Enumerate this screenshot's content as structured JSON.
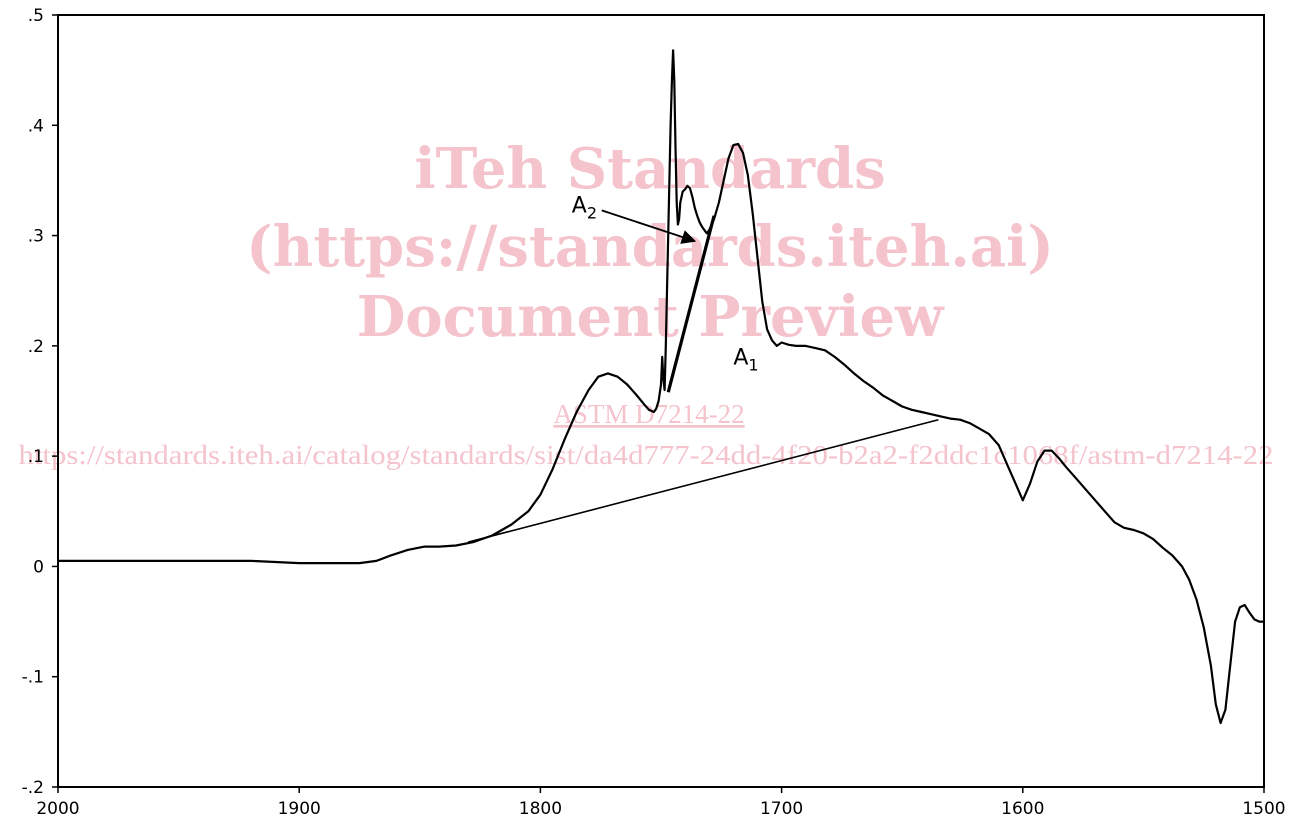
{
  "chart_data": {
    "type": "line",
    "title": "",
    "xlabel": "",
    "ylabel": "",
    "xlim": [
      2000,
      1500
    ],
    "ylim": [
      -0.2,
      0.5
    ],
    "x_reversed": true,
    "grid": false,
    "x_ticks": [
      2000,
      1900,
      1800,
      1700,
      1600,
      1500
    ],
    "x_tick_labels": [
      "2000",
      "1900",
      "1800",
      "1700",
      "1600",
      "1500"
    ],
    "y_ticks": [
      0.5,
      0.4,
      0.3,
      0.2,
      0.1,
      0,
      -0.1,
      -0.2
    ],
    "y_tick_labels": [
      ".5",
      ".4",
      ".3",
      ".2",
      ".1",
      "0",
      "-.1",
      "-.2"
    ],
    "series": [
      {
        "x": [
          2000,
          1980,
          1960,
          1940,
          1920,
          1900,
          1885,
          1875,
          1868,
          1862,
          1855,
          1848,
          1842,
          1835,
          1828,
          1820,
          1812,
          1805,
          1800,
          1795,
          1790,
          1785,
          1780,
          1776,
          1772,
          1768,
          1764,
          1760,
          1757,
          1755,
          1753,
          1752,
          1751,
          1750,
          1749.5,
          1749,
          1748.5,
          1748,
          1747,
          1746,
          1745.5,
          1745,
          1744.5,
          1744,
          1743.5,
          1743,
          1742.5,
          1742,
          1741,
          1740,
          1739,
          1738,
          1737,
          1736,
          1735,
          1734,
          1733,
          1732,
          1731,
          1730,
          1728,
          1726,
          1724,
          1722,
          1720,
          1718,
          1716,
          1714,
          1712,
          1710,
          1708,
          1706,
          1704,
          1702,
          1700,
          1697,
          1694,
          1690,
          1686,
          1682,
          1678,
          1674,
          1670,
          1666,
          1662,
          1658,
          1654,
          1650,
          1646,
          1642,
          1638,
          1634,
          1630,
          1626,
          1622,
          1618,
          1614,
          1610,
          1606,
          1603,
          1600,
          1597,
          1594,
          1591,
          1588,
          1585,
          1582,
          1578,
          1574,
          1570,
          1566,
          1562,
          1558,
          1554,
          1550,
          1546,
          1542,
          1538,
          1534,
          1531,
          1528,
          1525,
          1522,
          1520,
          1518,
          1516,
          1514,
          1512,
          1510,
          1508,
          1506,
          1504,
          1502,
          1500
        ],
        "values": [
          0.005,
          0.005,
          0.005,
          0.005,
          0.005,
          0.003,
          0.003,
          0.003,
          0.005,
          0.01,
          0.015,
          0.018,
          0.018,
          0.019,
          0.022,
          0.028,
          0.038,
          0.05,
          0.065,
          0.088,
          0.115,
          0.14,
          0.16,
          0.172,
          0.175,
          0.172,
          0.165,
          0.155,
          0.147,
          0.142,
          0.14,
          0.143,
          0.15,
          0.165,
          0.19,
          0.17,
          0.16,
          0.2,
          0.3,
          0.4,
          0.44,
          0.468,
          0.44,
          0.38,
          0.33,
          0.31,
          0.315,
          0.33,
          0.34,
          0.342,
          0.345,
          0.343,
          0.335,
          0.325,
          0.318,
          0.312,
          0.308,
          0.305,
          0.302,
          0.305,
          0.315,
          0.33,
          0.35,
          0.37,
          0.382,
          0.383,
          0.375,
          0.355,
          0.32,
          0.28,
          0.24,
          0.215,
          0.205,
          0.2,
          0.203,
          0.201,
          0.2,
          0.2,
          0.198,
          0.196,
          0.19,
          0.183,
          0.175,
          0.168,
          0.162,
          0.155,
          0.15,
          0.145,
          0.142,
          0.14,
          0.138,
          0.136,
          0.134,
          0.133,
          0.13,
          0.125,
          0.12,
          0.11,
          0.09,
          0.075,
          0.06,
          0.075,
          0.095,
          0.105,
          0.105,
          0.098,
          0.09,
          0.08,
          0.07,
          0.06,
          0.05,
          0.04,
          0.035,
          0.033,
          0.03,
          0.025,
          0.017,
          0.01,
          0.0,
          -0.012,
          -0.03,
          -0.055,
          -0.09,
          -0.125,
          -0.142,
          -0.13,
          -0.09,
          -0.05,
          -0.037,
          -0.035,
          -0.042,
          -0.048,
          -0.05,
          -0.05
        ]
      }
    ],
    "baselines": [
      {
        "x": [
          1830,
          1635
        ],
        "y": [
          0.022,
          0.133
        ]
      },
      {
        "x": [
          1747,
          1728
        ],
        "y": [
          0.158,
          0.318
        ]
      }
    ],
    "annotations": [
      {
        "label": "A",
        "sub": "2",
        "x": 1787,
        "y": 0.321,
        "arrow_to": [
          1736,
          0.295
        ]
      },
      {
        "label": "A",
        "sub": "1",
        "x": 1720,
        "y": 0.183
      }
    ]
  },
  "watermark": {
    "lines": [
      "iTeh Standards",
      "(https://standards.iteh.ai)",
      "Document Preview"
    ],
    "link_text": "ASTM D7214-22",
    "url_text": "https://standards.iteh.ai/catalog/standards/sist/da4d777-24dd-4f20-b2a2-f2ddc1c1068f/astm-d7214-22"
  }
}
